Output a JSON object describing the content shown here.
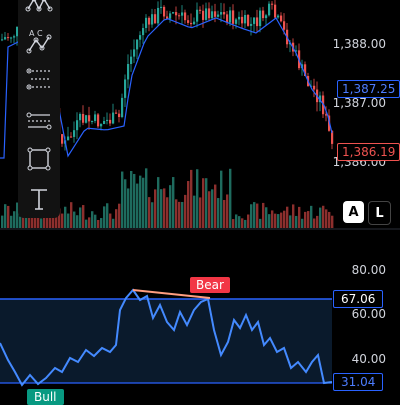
{
  "price_axis": {
    "labels": [
      "1,388.00",
      "1,387.00",
      "1,386.00"
    ]
  },
  "price_tags": {
    "ma": "1,387.25",
    "last": "1,386.19"
  },
  "scale_buttons": {
    "auto": "A",
    "log": "L"
  },
  "rsi_axis": {
    "labels": [
      "80.00",
      "60.00",
      "40.00"
    ]
  },
  "rsi_tags": {
    "upper_band": "67.06",
    "current": "31.04"
  },
  "divergence_labels": {
    "bear": "Bear",
    "bull": "Bull"
  },
  "toolbar": {
    "icons": [
      "pattern-tool-icon",
      "abcd-pattern-icon",
      "fib-retracement-icon",
      "measure-tool-icon",
      "rectangle-tool-icon",
      "text-tool-icon"
    ],
    "abcd_letters": "A C"
  },
  "colors": {
    "up": "#26a69a",
    "down": "#ef5350",
    "ma": "#2962ff",
    "rsi_line": "#448aff",
    "rsi_band": "#2962ff",
    "bear": "#f23645",
    "bull": "#089981",
    "divergence": "#ff9e80"
  }
}
